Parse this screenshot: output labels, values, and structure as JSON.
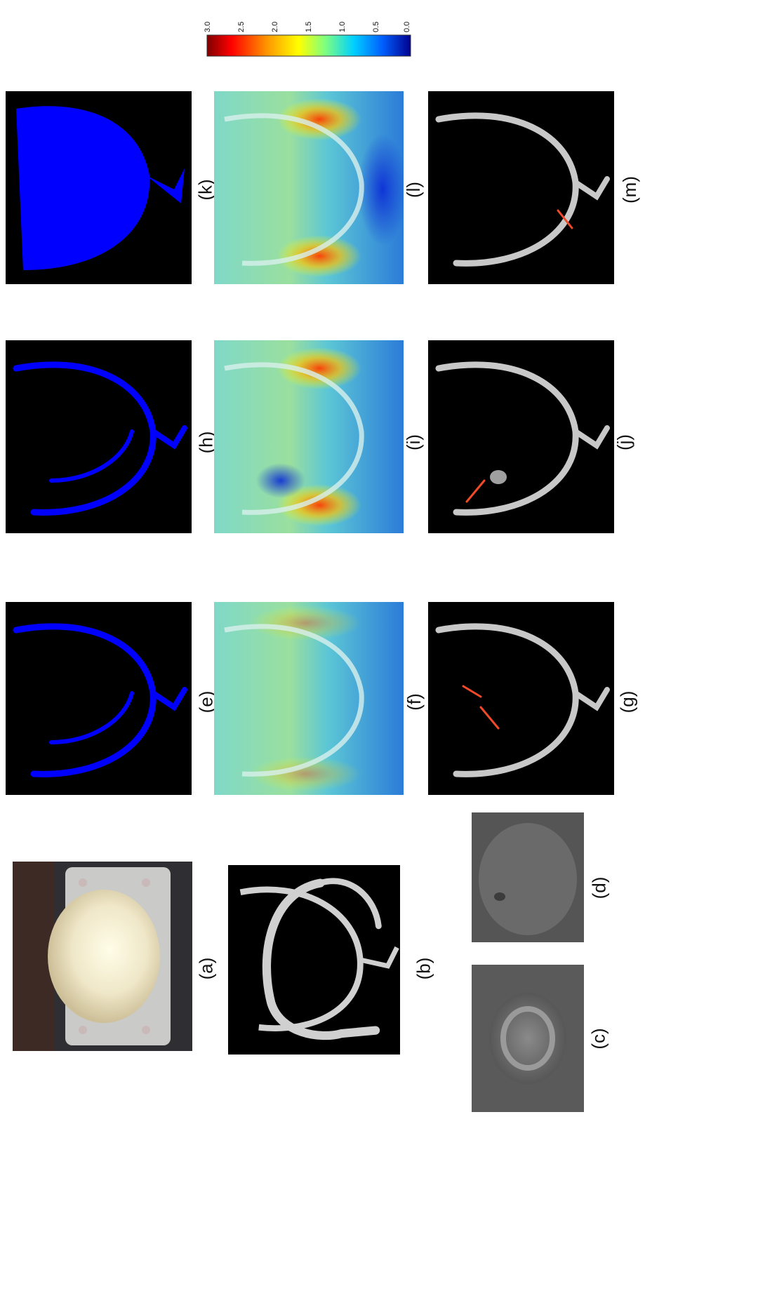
{
  "figure": {
    "panel_labels": {
      "a": "(a)",
      "b": "(b)",
      "c": "(c)",
      "d": "(d)",
      "e": "(e)",
      "f": "(f)",
      "g": "(g)",
      "h": "(h)",
      "i": "(i)",
      "j": "(j)",
      "k": "(k)",
      "l": "(l)",
      "m": "(m)"
    },
    "colorbar": {
      "ticks": [
        "3.0",
        "2.5",
        "2.0",
        "1.5",
        "1.0",
        "0.5",
        "0.0"
      ],
      "colors": [
        "#7f0000",
        "#ff0000",
        "#ff8c00",
        "#ffff00",
        "#7fff7f",
        "#00d0ff",
        "#0060ff",
        "#00008f"
      ]
    },
    "colors": {
      "segmentation": "#0000ff",
      "arrow": "#f04a28",
      "background": "#000000"
    }
  }
}
